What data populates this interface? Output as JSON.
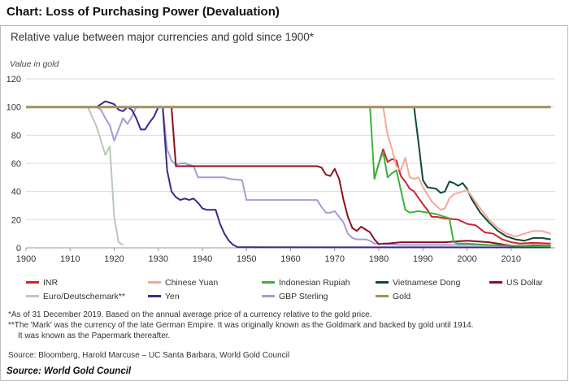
{
  "header": {
    "title": "Chart: Loss of Purchasing Power (Devaluation)"
  },
  "chart_data": {
    "type": "line",
    "title": "Relative value between major currencies and gold since 1900*",
    "ylabel": "Value in gold",
    "xlabel": "",
    "xlim": [
      1900,
      2020
    ],
    "ylim": [
      0,
      120
    ],
    "xticks": [
      1900,
      1910,
      1920,
      1930,
      1940,
      1950,
      1960,
      1970,
      1980,
      1990,
      2000,
      2010
    ],
    "yticks": [
      0,
      20,
      40,
      60,
      80,
      100,
      120
    ],
    "grid": "horizontal",
    "legend_position": "bottom",
    "series": [
      {
        "name": "Gold",
        "color": "#a68f5b",
        "points": [
          [
            1900,
            100
          ],
          [
            2019,
            100
          ]
        ]
      },
      {
        "name": "Euro/Deutschemark**",
        "color": "#b8c9b8",
        "points": [
          [
            1900,
            100
          ],
          [
            1914,
            100
          ],
          [
            1915,
            93
          ],
          [
            1916,
            86
          ],
          [
            1917,
            76
          ],
          [
            1918,
            66
          ],
          [
            1919,
            72
          ],
          [
            1920,
            22
          ],
          [
            1921,
            4
          ],
          [
            1922,
            2
          ]
        ]
      },
      {
        "name": "GBP Sterling",
        "color": "#a89ad6",
        "points": [
          [
            1900,
            100
          ],
          [
            1916,
            100
          ],
          [
            1917,
            98
          ],
          [
            1918,
            92
          ],
          [
            1919,
            87
          ],
          [
            1920,
            76
          ],
          [
            1921,
            84
          ],
          [
            1922,
            92
          ],
          [
            1923,
            88
          ],
          [
            1924,
            93
          ],
          [
            1925,
            100
          ],
          [
            1931,
            100
          ],
          [
            1932,
            70
          ],
          [
            1933,
            62
          ],
          [
            1934,
            59
          ],
          [
            1935,
            60
          ],
          [
            1936,
            60
          ],
          [
            1938,
            58
          ],
          [
            1939,
            50
          ],
          [
            1945,
            50
          ],
          [
            1946,
            49
          ],
          [
            1949,
            48
          ],
          [
            1950,
            34
          ],
          [
            1966,
            34
          ],
          [
            1967,
            29
          ],
          [
            1968,
            25
          ],
          [
            1969,
            25
          ],
          [
            1970,
            26
          ],
          [
            1971,
            22
          ],
          [
            1972,
            18
          ],
          [
            1973,
            10
          ],
          [
            1974,
            7
          ],
          [
            1975,
            6
          ],
          [
            1977,
            6
          ],
          [
            1978,
            5
          ],
          [
            1979,
            3
          ],
          [
            1980,
            3
          ],
          [
            1985,
            2
          ],
          [
            1990,
            2
          ],
          [
            2000,
            2
          ],
          [
            2010,
            1.5
          ],
          [
            2019,
            1
          ]
        ]
      },
      {
        "name": "Yen",
        "color": "#3a2a8c",
        "points": [
          [
            1900,
            100
          ],
          [
            1916,
            100
          ],
          [
            1917,
            102
          ],
          [
            1918,
            104
          ],
          [
            1920,
            102
          ],
          [
            1921,
            98
          ],
          [
            1922,
            97
          ],
          [
            1923,
            100
          ],
          [
            1924,
            98
          ],
          [
            1925,
            92
          ],
          [
            1926,
            84
          ],
          [
            1927,
            84
          ],
          [
            1928,
            89
          ],
          [
            1929,
            93
          ],
          [
            1930,
            100
          ],
          [
            1931,
            100
          ],
          [
            1932,
            55
          ],
          [
            1933,
            40
          ],
          [
            1934,
            36
          ],
          [
            1935,
            34
          ],
          [
            1936,
            35
          ],
          [
            1937,
            34
          ],
          [
            1938,
            35
          ],
          [
            1939,
            32
          ],
          [
            1940,
            28
          ],
          [
            1941,
            27
          ],
          [
            1942,
            27
          ],
          [
            1943,
            27
          ],
          [
            1944,
            17
          ],
          [
            1945,
            10
          ],
          [
            1946,
            5
          ],
          [
            1947,
            2
          ],
          [
            1948,
            0.5
          ],
          [
            1950,
            0.4
          ],
          [
            2019,
            0.3
          ]
        ]
      },
      {
        "name": "US Dollar",
        "color": "#8c1022",
        "points": [
          [
            1900,
            100
          ],
          [
            1933,
            100
          ],
          [
            1934,
            58
          ],
          [
            1966,
            58
          ],
          [
            1967,
            57
          ],
          [
            1968,
            52
          ],
          [
            1969,
            51
          ],
          [
            1970,
            56
          ],
          [
            1971,
            49
          ],
          [
            1972,
            34
          ],
          [
            1973,
            22
          ],
          [
            1974,
            14
          ],
          [
            1975,
            12
          ],
          [
            1976,
            15
          ],
          [
            1977,
            13
          ],
          [
            1978,
            11
          ],
          [
            1979,
            6
          ],
          [
            1980,
            2.5
          ],
          [
            1981,
            3
          ],
          [
            1982,
            3
          ],
          [
            1985,
            4
          ],
          [
            1988,
            4
          ],
          [
            1990,
            4
          ],
          [
            1995,
            4
          ],
          [
            2000,
            5
          ],
          [
            2005,
            4
          ],
          [
            2010,
            1.5
          ],
          [
            2012,
            1.2
          ],
          [
            2015,
            1.8
          ],
          [
            2019,
            1.4
          ]
        ]
      },
      {
        "name": "Vietnamese Dong",
        "color": "#0f4a32",
        "points": [
          [
            1988,
            100
          ],
          [
            1989,
            75
          ],
          [
            1990,
            48
          ],
          [
            1991,
            43
          ],
          [
            1993,
            42
          ],
          [
            1994,
            39
          ],
          [
            1995,
            40
          ],
          [
            1996,
            47
          ],
          [
            1997,
            46
          ],
          [
            1998,
            44
          ],
          [
            1999,
            46
          ],
          [
            2000,
            42
          ],
          [
            2001,
            35
          ],
          [
            2003,
            25
          ],
          [
            2005,
            18
          ],
          [
            2007,
            12
          ],
          [
            2009,
            8
          ],
          [
            2011,
            6
          ],
          [
            2013,
            5
          ],
          [
            2015,
            7
          ],
          [
            2017,
            7
          ],
          [
            2019,
            6
          ]
        ]
      },
      {
        "name": "INR",
        "color": "#d32030",
        "points": [
          [
            1979,
            49
          ],
          [
            1980,
            60
          ],
          [
            1981,
            70
          ],
          [
            1982,
            61
          ],
          [
            1983,
            63
          ],
          [
            1984,
            62
          ],
          [
            1985,
            51
          ],
          [
            1986,
            47
          ],
          [
            1987,
            42
          ],
          [
            1988,
            40
          ],
          [
            1990,
            31
          ],
          [
            1991,
            27
          ],
          [
            1992,
            22
          ],
          [
            1993,
            22
          ],
          [
            1995,
            21
          ],
          [
            1998,
            20
          ],
          [
            2000,
            17
          ],
          [
            2002,
            16
          ],
          [
            2004,
            11
          ],
          [
            2006,
            10
          ],
          [
            2008,
            6
          ],
          [
            2010,
            4
          ],
          [
            2012,
            3
          ],
          [
            2015,
            3.5
          ],
          [
            2019,
            3
          ]
        ]
      },
      {
        "name": "Chinese Yuan",
        "color": "#f5a898",
        "points": [
          [
            1981,
            100
          ],
          [
            1982,
            80
          ],
          [
            1983,
            70
          ],
          [
            1984,
            58
          ],
          [
            1985,
            55
          ],
          [
            1986,
            64
          ],
          [
            1987,
            50
          ],
          [
            1988,
            49
          ],
          [
            1989,
            50
          ],
          [
            1990,
            43
          ],
          [
            1991,
            38
          ],
          [
            1992,
            33
          ],
          [
            1994,
            27
          ],
          [
            1995,
            28
          ],
          [
            1996,
            35
          ],
          [
            1997,
            38
          ],
          [
            1999,
            40
          ],
          [
            2000,
            41
          ],
          [
            2001,
            37
          ],
          [
            2003,
            28
          ],
          [
            2005,
            20
          ],
          [
            2007,
            14
          ],
          [
            2009,
            10
          ],
          [
            2011,
            8
          ],
          [
            2013,
            10
          ],
          [
            2015,
            12
          ],
          [
            2017,
            12
          ],
          [
            2019,
            10
          ]
        ]
      },
      {
        "name": "Indonesian Rupiah",
        "color": "#3cb23c",
        "points": [
          [
            1978,
            100
          ],
          [
            1979,
            49
          ],
          [
            1980,
            60
          ],
          [
            1981,
            68
          ],
          [
            1982,
            50
          ],
          [
            1983,
            53
          ],
          [
            1984,
            55
          ],
          [
            1985,
            41
          ],
          [
            1986,
            27
          ],
          [
            1987,
            25
          ],
          [
            1989,
            26
          ],
          [
            1991,
            25
          ],
          [
            1993,
            24
          ],
          [
            1995,
            22
          ],
          [
            1996,
            21
          ],
          [
            1997,
            4
          ],
          [
            1998,
            3
          ],
          [
            2000,
            3
          ],
          [
            2005,
            2
          ],
          [
            2010,
            1.5
          ],
          [
            2019,
            1
          ]
        ]
      }
    ]
  },
  "legend": {
    "items": [
      {
        "name": "INR",
        "color": "#d32030"
      },
      {
        "name": "Chinese Yuan",
        "color": "#f5a898"
      },
      {
        "name": "Indonesian Rupiah",
        "color": "#3cb23c"
      },
      {
        "name": "Vietnamese Dong",
        "color": "#0f4a32"
      },
      {
        "name": "US Dollar",
        "color": "#8c1022"
      },
      {
        "name": "Euro/Deutschemark**",
        "color": "#b8c9b8"
      },
      {
        "name": "Yen",
        "color": "#3a2a8c"
      },
      {
        "name": "GBP Sterling",
        "color": "#a89ad6"
      },
      {
        "name": "Gold",
        "color": "#a68f5b"
      }
    ]
  },
  "notes": {
    "line1": "*As of 31 December 2019. Based on the annual average price of a currency relative to the gold price.",
    "line2": "**The 'Mark' was the currency of the late German Empire. It was originally known as the Goldmark and backed by gold until 1914.",
    "line3": "It was known as the Papermark thereafter.",
    "source": "Source: Bloomberg, Harold Marcuse – UC Santa Barbara, World Gold Council"
  },
  "footer": {
    "source": "Source: World Gold Council"
  }
}
